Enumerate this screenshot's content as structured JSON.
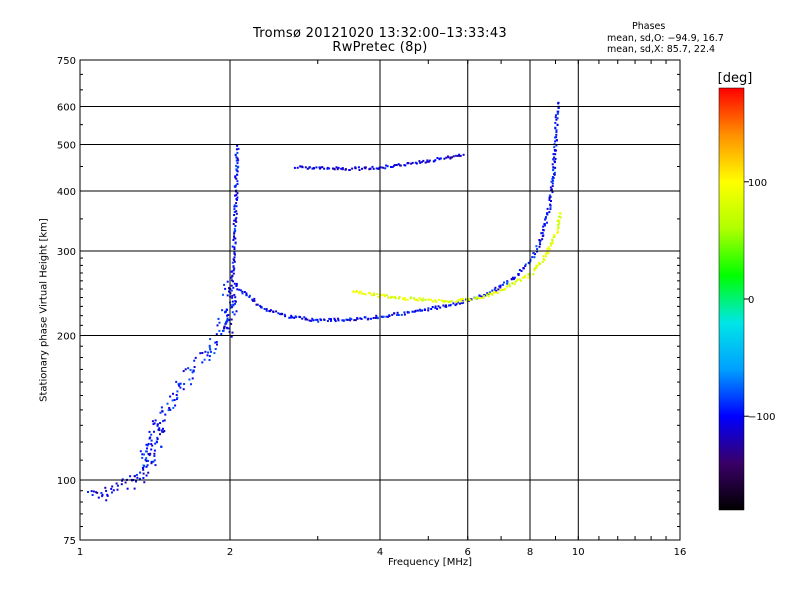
{
  "chart_data": {
    "type": "scatter",
    "title": "Tromsø 20121020 13:32:00–13:33:43",
    "subtitle": "RwPretec (8p)",
    "info_heading": "Phases",
    "info_line1": "mean, sd,O: −94.9, 16.7",
    "info_line2": "mean, sd,X: 85.7, 22.4",
    "xlabel": "Frequency [MHz]",
    "ylabel": "Stationary phase Virtual Height [km]",
    "x_scale": "log",
    "y_scale": "log",
    "xlim": [
      1,
      16
    ],
    "ylim": [
      75,
      750
    ],
    "x_ticks": [
      1,
      2,
      4,
      6,
      8,
      10,
      16
    ],
    "x_tick_labels": [
      "1",
      "2",
      "4",
      "6",
      "8",
      "10",
      "16"
    ],
    "x_grid": [
      2,
      4,
      6,
      8,
      10
    ],
    "y_ticks": [
      75,
      100,
      200,
      300,
      400,
      500,
      600,
      750
    ],
    "y_tick_labels": [
      "75",
      "100",
      "200",
      "300",
      "400",
      "500",
      "600",
      "750"
    ],
    "y_grid": [
      100,
      200,
      300,
      400,
      500,
      600
    ],
    "grid": true,
    "colorbar": {
      "label": "[deg]",
      "range": [
        -180,
        180
      ],
      "ticks": [
        100,
        0,
        -100
      ],
      "tick_labels": [
        "100",
        "0",
        "−100"
      ],
      "colors": [
        "#000000",
        "#3a0068",
        "#0000ff",
        "#00a0ff",
        "#00e6e6",
        "#00ff00",
        "#b0ff00",
        "#ffff00",
        "#ff9000",
        "#ff0000"
      ]
    },
    "series": [
      {
        "trace": "O-mode low band (E/F1 rise)",
        "phase_deg": -95,
        "segments": [
          [
            1.3,
            103
          ],
          [
            1.4,
            125
          ],
          [
            1.5,
            145
          ],
          [
            1.6,
            160
          ],
          [
            1.7,
            172
          ],
          [
            1.8,
            186
          ],
          [
            1.9,
            205
          ],
          [
            1.95,
            225
          ],
          [
            2.0,
            260
          ]
        ]
      },
      {
        "trace": "O-mode F1 cusp",
        "phase_deg": -100,
        "segments": [
          [
            1.98,
            200
          ],
          [
            2.0,
            230
          ],
          [
            2.02,
            280
          ],
          [
            2.04,
            350
          ],
          [
            2.05,
            420
          ],
          [
            2.06,
            500
          ]
        ]
      },
      {
        "trace": "O-mode F2 trace",
        "phase_deg": -100,
        "segments": [
          [
            2.05,
            255
          ],
          [
            2.3,
            230
          ],
          [
            2.6,
            220
          ],
          [
            3.0,
            216
          ],
          [
            3.5,
            217
          ],
          [
            4.0,
            220
          ],
          [
            4.5,
            224
          ],
          [
            5.0,
            228
          ],
          [
            5.5,
            233
          ],
          [
            6.0,
            238
          ],
          [
            6.5,
            245
          ],
          [
            7.0,
            255
          ],
          [
            7.5,
            268
          ],
          [
            8.0,
            288
          ],
          [
            8.4,
            320
          ],
          [
            8.7,
            370
          ],
          [
            8.9,
            450
          ],
          [
            9.0,
            560
          ],
          [
            9.05,
            620
          ]
        ]
      },
      {
        "trace": "X-mode F2 trace",
        "phase_deg": 85,
        "segments": [
          [
            3.5,
            248
          ],
          [
            4.0,
            243
          ],
          [
            4.5,
            240
          ],
          [
            5.0,
            238
          ],
          [
            5.5,
            237
          ],
          [
            6.0,
            239
          ],
          [
            6.5,
            243
          ],
          [
            7.0,
            250
          ],
          [
            7.5,
            260
          ],
          [
            8.0,
            270
          ],
          [
            8.5,
            290
          ],
          [
            9.0,
            330
          ],
          [
            9.2,
            365
          ]
        ]
      },
      {
        "trace": "O-mode second hop",
        "phase_deg": -110,
        "segments": [
          [
            2.7,
            450
          ],
          [
            3.0,
            448
          ],
          [
            3.5,
            447
          ],
          [
            4.0,
            450
          ],
          [
            4.5,
            458
          ],
          [
            5.0,
            465
          ],
          [
            5.5,
            472
          ],
          [
            5.9,
            480
          ]
        ]
      },
      {
        "trace": "Low-frequency echoes",
        "phase_deg": -105,
        "segments": [
          [
            1.05,
            95
          ],
          [
            1.1,
            93
          ],
          [
            1.32,
            102
          ],
          [
            1.38,
            110
          ],
          [
            1.45,
            132
          ]
        ]
      }
    ]
  }
}
